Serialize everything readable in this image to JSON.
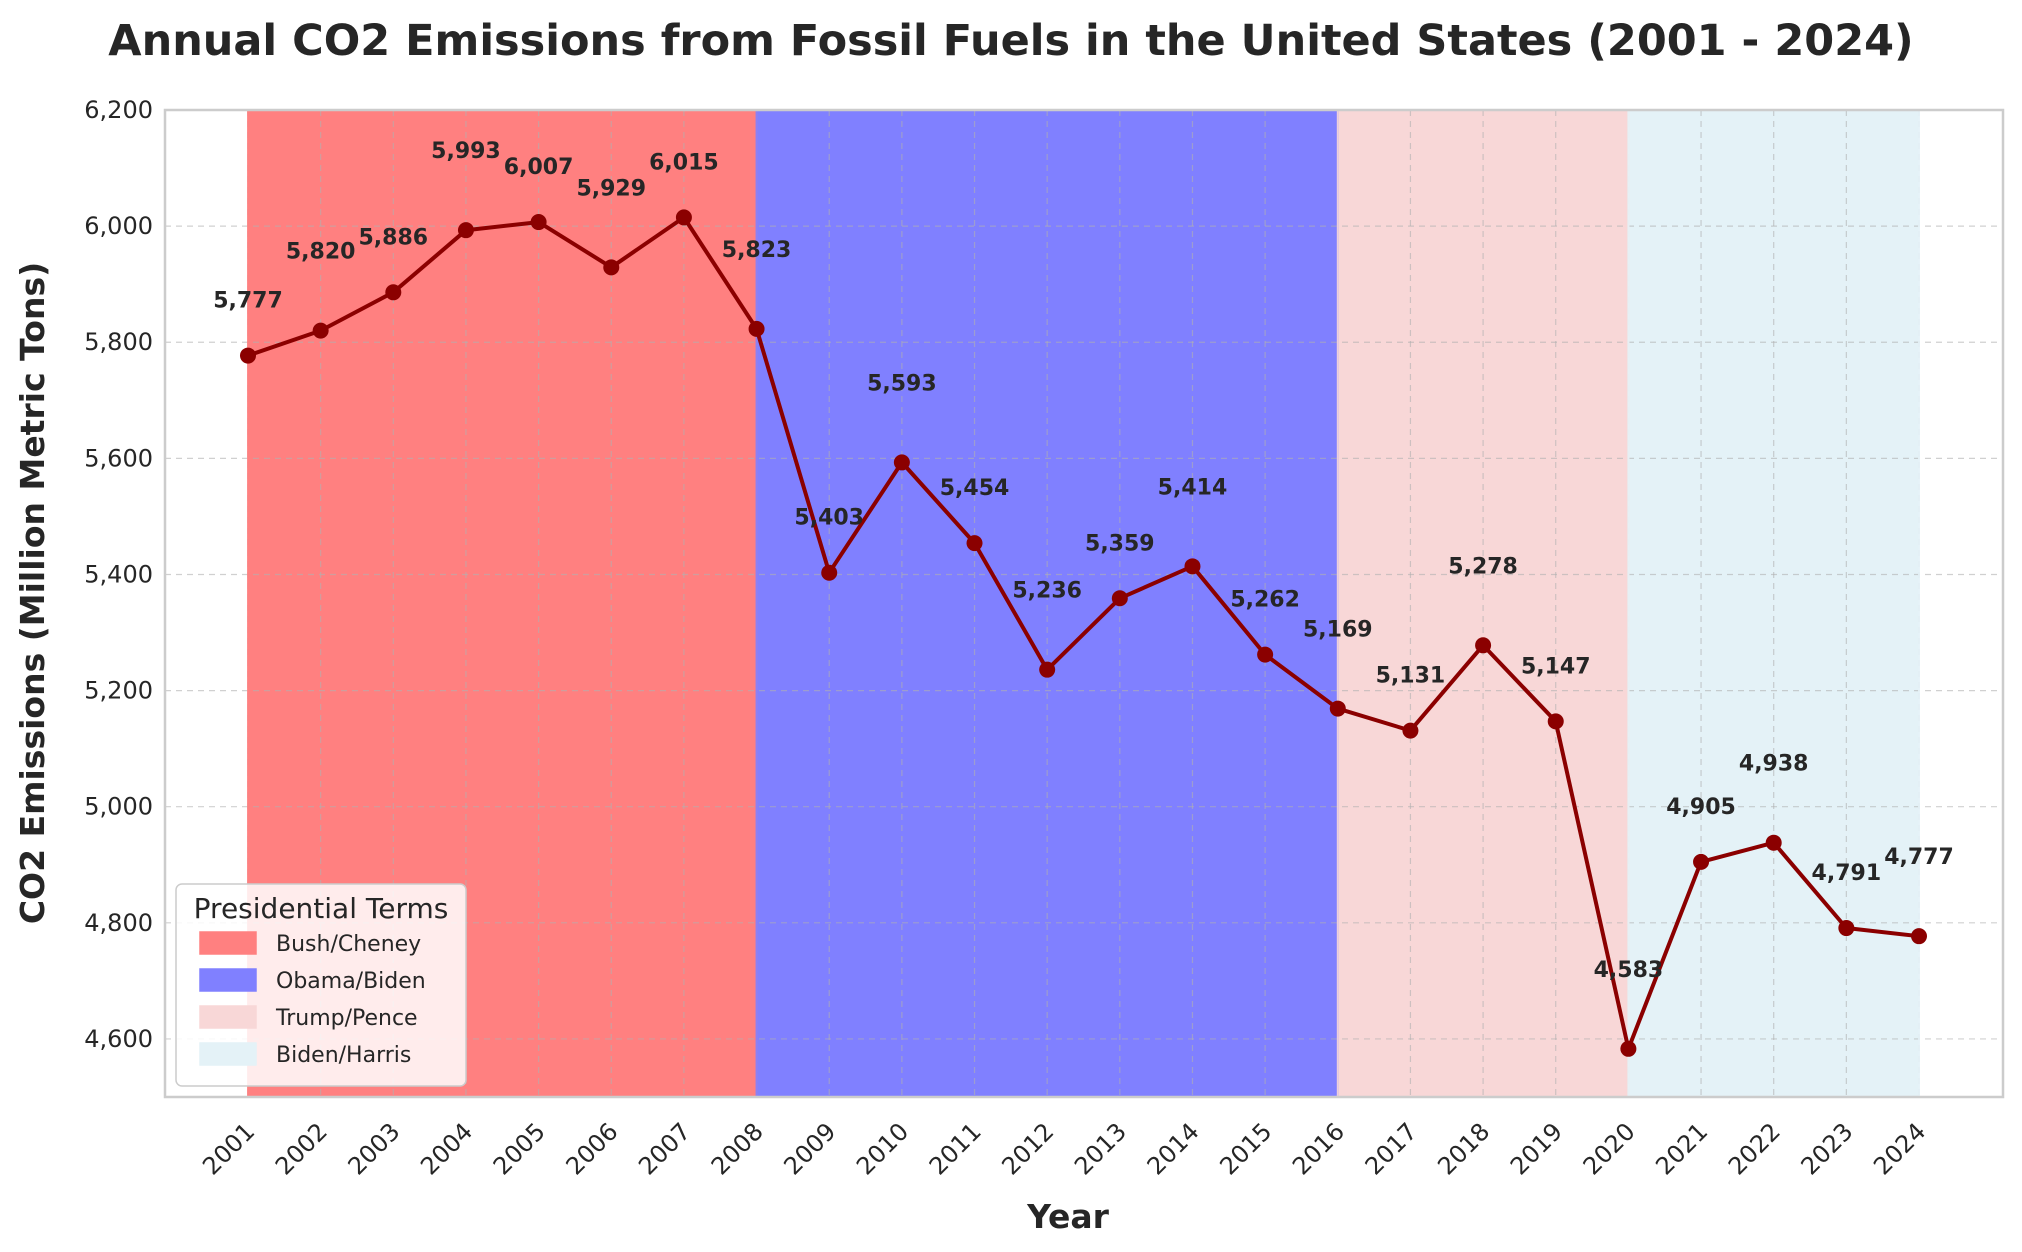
{
  "chart_data": {
    "type": "line",
    "title": "Annual CO2 Emissions from Fossil Fuels in the United States (2001 - 2024)",
    "xlabel": "Year",
    "ylabel": "CO2 Emissions (Million Metric Tons)",
    "x": [
      "2001",
      "2002",
      "2003",
      "2004",
      "2005",
      "2006",
      "2007",
      "2008",
      "2009",
      "2010",
      "2011",
      "2012",
      "2013",
      "2014",
      "2015",
      "2016",
      "2017",
      "2018",
      "2019",
      "2020",
      "2021",
      "2022",
      "2023",
      "2024"
    ],
    "values": [
      5777,
      5820,
      5886,
      5993,
      6007,
      5929,
      6015,
      5823,
      5403,
      5593,
      5454,
      5236,
      5359,
      5414,
      5262,
      5169,
      5131,
      5278,
      5147,
      4583,
      4905,
      4938,
      4791,
      4777
    ],
    "data_labels": [
      "5,777",
      "5,820",
      "5,886",
      "5,993",
      "6,007",
      "5,929",
      "6,015",
      "5,823",
      "5,403",
      "5,593",
      "5,454",
      "5,236",
      "5,359",
      "5,414",
      "5,262",
      "5,169",
      "5,131",
      "5,278",
      "5,147",
      "4,583",
      "4,905",
      "4,938",
      "4,791",
      "4,777"
    ],
    "ylim": [
      4500,
      6200
    ],
    "yticks": [
      4600,
      4800,
      5000,
      5200,
      5400,
      5600,
      5800,
      6000,
      6200
    ],
    "ytick_labels": [
      "4,600",
      "4,800",
      "5,000",
      "5,200",
      "5,400",
      "5,600",
      "5,800",
      "6,000",
      "6,200"
    ],
    "line_color": "#8b0000",
    "grid": true,
    "legend": {
      "title": "Presidential Terms",
      "placement": "lower-left",
      "entries": [
        {
          "name": "Bush/Cheney",
          "start": "2001",
          "end": "2008",
          "color": "#ff8080"
        },
        {
          "name": "Obama/Biden",
          "start": "2008",
          "end": "2016",
          "color": "#8080ff"
        },
        {
          "name": "Trump/Pence",
          "start": "2016",
          "end": "2020",
          "color": "#f8d7d7"
        },
        {
          "name": "Biden/Harris",
          "start": "2020",
          "end": "2024",
          "color": "#e4f2f7"
        }
      ]
    }
  }
}
